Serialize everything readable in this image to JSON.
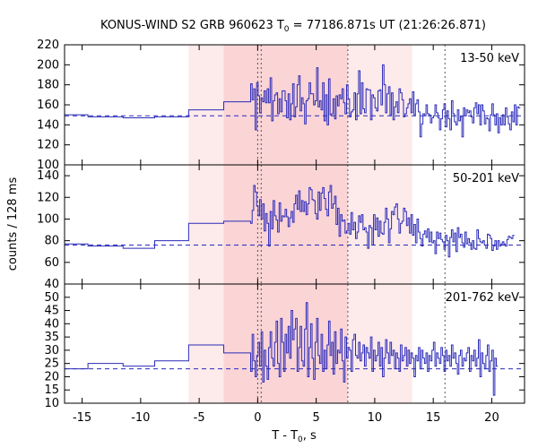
{
  "chart_data": {
    "type": "line",
    "title_prefix": "KONUS-WIND S2 GRB 960623 T",
    "title_sub": "0",
    "title_suffix": " = 77186.871s UT (21:26:26.871)",
    "xlabel_prefix": "T - T",
    "xlabel_sub": "0",
    "xlabel_suffix": ", s",
    "ylabel": "counts / 128 ms",
    "xlim": [
      -16.5,
      22.8
    ],
    "x_ticks": [
      -15,
      -10,
      -5,
      0,
      5,
      10,
      15,
      20
    ],
    "x_tick_labels": [
      "-15",
      "-10",
      "-5",
      "0",
      "5",
      "10",
      "15",
      "20"
    ],
    "grid": false,
    "colors": {
      "series": "#2a2ab8",
      "light_shade": "#fdeaea",
      "dark_shade": "#fbd4d6",
      "marker_line": "#555555",
      "frame": "#000000"
    },
    "shaded_regions": [
      {
        "x0": -5.9,
        "x1": 13.2,
        "shade": "light"
      },
      {
        "x0": -2.9,
        "x1": 7.7,
        "shade": "dark"
      }
    ],
    "vertical_markers": [
      0.0,
      0.3,
      7.7,
      16.0
    ],
    "panels": [
      {
        "label": "13-50 keV",
        "ylim": [
          100,
          220
        ],
        "y_ticks": [
          100,
          120,
          140,
          160,
          180,
          200,
          220
        ],
        "background": 149,
        "pre_steps": [
          {
            "x0": -16.5,
            "x1": -14.5,
            "y": 150
          },
          {
            "x0": -14.5,
            "x1": -11.5,
            "y": 148
          },
          {
            "x0": -11.5,
            "x1": -8.8,
            "y": 147
          },
          {
            "x0": -8.8,
            "x1": -5.9,
            "y": 148
          },
          {
            "x0": -5.9,
            "x1": -2.9,
            "y": 155
          },
          {
            "x0": -2.9,
            "x1": -0.6,
            "y": 163
          }
        ],
        "fine_start": -0.6,
        "fine_dt": 0.128,
        "fine_values": [
          181,
          165,
          176,
          135,
          182,
          169,
          152,
          167,
          163,
          174,
          162,
          176,
          162,
          187,
          144,
          164,
          170,
          172,
          151,
          166,
          153,
          174,
          174,
          164,
          147,
          171,
          145,
          161,
          181,
          148,
          158,
          180,
          189,
          154,
          167,
          161,
          141,
          164,
          166,
          182,
          171,
          171,
          160,
          164,
          197,
          158,
          164,
          155,
          182,
          144,
          170,
          140,
          186,
          150,
          151,
          166,
          146,
          169,
          159,
          170,
          166,
          176,
          162,
          151,
          180,
          166,
          148,
          153,
          155,
          172,
          145,
          171,
          194,
          151,
          182,
          156,
          152,
          176,
          175,
          175,
          145,
          170,
          167,
          157,
          154,
          174,
          175,
          160,
          200,
          180,
          152,
          171,
          178,
          150,
          172,
          145,
          158,
          163,
          152,
          176,
          172,
          165,
          148,
          151,
          157,
          161,
          166,
          152,
          173,
          150,
          161,
          165,
          153,
          128,
          141,
          151,
          149,
          160,
          151,
          150,
          142,
          147,
          149,
          160,
          152,
          147,
          135,
          146,
          155,
          161,
          138,
          154,
          146,
          135,
          164,
          151,
          143,
          140,
          155,
          144,
          148,
          128,
          157,
          149,
          155,
          152,
          154,
          148,
          142,
          157,
          162,
          151,
          160,
          140,
          160,
          154,
          141,
          147,
          146,
          134,
          150,
          161,
          150,
          140,
          151,
          132,
          147,
          140,
          150,
          140,
          157,
          148,
          141,
          135,
          153,
          143,
          160,
          140,
          158,
          157
        ]
      },
      {
        "label": "50-201 keV",
        "ylim": [
          40,
          150
        ],
        "y_ticks": [
          40,
          60,
          80,
          100,
          120,
          140
        ],
        "background": 76,
        "pre_steps": [
          {
            "x0": -16.5,
            "x1": -14.5,
            "y": 77
          },
          {
            "x0": -14.5,
            "x1": -11.5,
            "y": 75
          },
          {
            "x0": -11.5,
            "x1": -8.8,
            "y": 73
          },
          {
            "x0": -8.8,
            "x1": -5.9,
            "y": 80
          },
          {
            "x0": -5.9,
            "x1": -2.9,
            "y": 96
          },
          {
            "x0": -2.9,
            "x1": -0.6,
            "y": 98
          }
        ],
        "fine_start": -0.6,
        "fine_dt": 0.128,
        "fine_values": [
          96,
          108,
          131,
          125,
          112,
          103,
          118,
          100,
          114,
          89,
          105,
          96,
          75,
          107,
          91,
          117,
          103,
          99,
          88,
          115,
          98,
          103,
          102,
          109,
          102,
          93,
          101,
          107,
          97,
          114,
          122,
          109,
          126,
          107,
          117,
          107,
          116,
          104,
          114,
          129,
          127,
          118,
          117,
          105,
          100,
          125,
          108,
          124,
          129,
          119,
          109,
          103,
          125,
          131,
          110,
          114,
          121,
          95,
          110,
          84,
          104,
          98,
          99,
          87,
          89,
          96,
          86,
          106,
          90,
          97,
          82,
          88,
          103,
          97,
          104,
          90,
          92,
          88,
          73,
          94,
          92,
          76,
          104,
          90,
          101,
          84,
          98,
          87,
          86,
          97,
          110,
          100,
          78,
          91,
          107,
          104,
          111,
          114,
          100,
          87,
          96,
          98,
          110,
          107,
          94,
          101,
          87,
          104,
          85,
          95,
          78,
          100,
          88,
          82,
          75,
          86,
          89,
          83,
          91,
          79,
          88,
          78,
          80,
          68,
          88,
          82,
          87,
          81,
          79,
          72,
          85,
          80,
          65,
          83,
          90,
          79,
          87,
          70,
          92,
          83,
          86,
          78,
          74,
          88,
          77,
          82,
          78,
          72,
          80,
          73,
          72,
          90,
          82,
          79,
          78,
          80,
          76,
          73,
          86,
          85,
          82,
          71,
          75,
          80,
          72,
          80,
          75,
          77,
          79,
          77,
          75,
          81,
          84,
          83,
          82,
          85
        ]
      },
      {
        "label": "201-762 keV",
        "ylim": [
          10,
          55
        ],
        "y_ticks": [
          10,
          15,
          20,
          25,
          30,
          35,
          40,
          45,
          50
        ],
        "background": 23,
        "pre_steps": [
          {
            "x0": -16.5,
            "x1": -14.5,
            "y": 23
          },
          {
            "x0": -14.5,
            "x1": -11.5,
            "y": 25
          },
          {
            "x0": -11.5,
            "x1": -8.8,
            "y": 24
          },
          {
            "x0": -8.8,
            "x1": -5.9,
            "y": 26
          },
          {
            "x0": -5.9,
            "x1": -2.9,
            "y": 32
          },
          {
            "x0": -2.9,
            "x1": -0.6,
            "y": 29
          }
        ],
        "fine_start": -0.6,
        "fine_dt": 0.128,
        "fine_values": [
          22,
          36,
          26,
          20,
          28,
          33,
          24,
          37,
          18,
          30,
          24,
          19,
          31,
          37,
          27,
          24,
          33,
          41,
          25,
          20,
          42,
          33,
          22,
          36,
          29,
          39,
          27,
          45,
          34,
          38,
          42,
          22,
          31,
          39,
          26,
          24,
          38,
          48,
          20,
          31,
          40,
          27,
          19,
          33,
          42,
          28,
          25,
          36,
          22,
          30,
          23,
          32,
          41,
          28,
          33,
          21,
          37,
          25,
          30,
          29,
          38,
          26,
          18,
          35,
          27,
          31,
          30,
          22,
          34,
          36,
          28,
          27,
          33,
          26,
          29,
          32,
          24,
          31,
          29,
          27,
          35,
          22,
          30,
          26,
          28,
          33,
          24,
          31,
          20,
          27,
          34,
          29,
          25,
          33,
          28,
          30,
          23,
          29,
          27,
          22,
          32,
          26,
          28,
          31,
          24,
          30,
          25,
          29,
          27,
          20,
          28,
          26,
          31,
          23,
          30,
          27,
          25,
          29,
          22,
          28,
          26,
          30,
          33,
          24,
          29,
          27,
          25,
          31,
          28,
          22,
          30,
          26,
          28,
          24,
          32,
          27,
          29,
          25,
          21,
          28,
          30,
          24,
          27,
          26,
          29,
          31,
          22,
          28,
          26,
          30,
          24,
          27,
          34,
          20,
          29,
          25,
          23,
          28,
          32,
          22,
          26,
          30,
          13,
          27,
          24
        ]
      }
    ]
  }
}
